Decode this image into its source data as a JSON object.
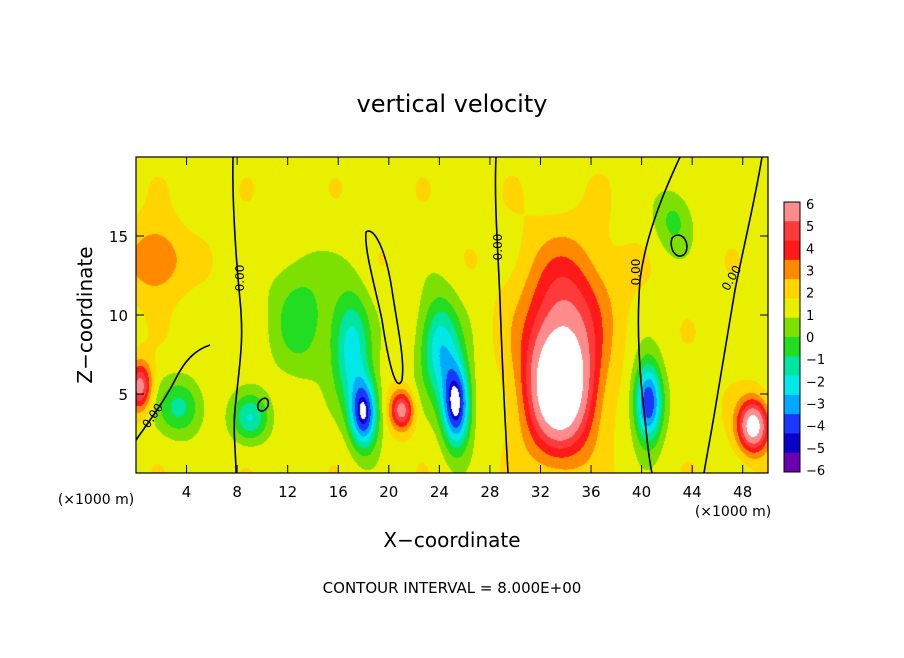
{
  "chart_data": {
    "type": "heatmap",
    "title": "vertical velocity",
    "xlabel": "X−coordinate",
    "ylabel": "Z−coordinate",
    "x_unit_note_left": "(×1000 m)",
    "x_unit_note_right": "(×1000 m)",
    "footer": "CONTOUR INTERVAL = 8.000E+00",
    "xlim": [
      0,
      50
    ],
    "ylim": [
      0,
      20
    ],
    "x_ticks": [
      4,
      8,
      12,
      16,
      20,
      24,
      28,
      32,
      36,
      40,
      44,
      48
    ],
    "y_ticks": [
      5,
      10,
      15
    ],
    "contour_label": "0.00",
    "colorbar": {
      "levels": [
        6,
        5,
        4,
        3,
        2,
        1,
        0,
        -1,
        -2,
        -3,
        -4,
        -5,
        -6
      ],
      "labels": [
        "6",
        "5",
        "4",
        "3",
        "2",
        "1",
        "0",
        "−1",
        "−2",
        "−3",
        "−4",
        "−5",
        "−6"
      ],
      "colors": [
        "#ff8c8c",
        "#ff3a3a",
        "#ff1a1a",
        "#ff8a00",
        "#ffd400",
        "#e8f000",
        "#7ee000",
        "#22dd22",
        "#00e5a0",
        "#00e8e8",
        "#00a8ff",
        "#1a36ff",
        "#0a00c8",
        "#6a00b0"
      ]
    },
    "features": [
      {
        "x": 1.5,
        "z": 13.5,
        "value": 2.5,
        "sx": 2.2,
        "sz": 2.2
      },
      {
        "x": 0.3,
        "z": 5.5,
        "value": 5.0,
        "sx": 0.9,
        "sz": 1.5
      },
      {
        "x": 3.5,
        "z": 4.2,
        "value": -3.0,
        "sx": 1.8,
        "sz": 1.8
      },
      {
        "x": 9.0,
        "z": 3.5,
        "value": -3.5,
        "sx": 1.5,
        "sz": 1.5
      },
      {
        "x": 13.0,
        "z": 10.0,
        "value": -2.2,
        "sx": 2.5,
        "sz": 4.0
      },
      {
        "x": 18.0,
        "z": 3.8,
        "value": -7.0,
        "sx": 1.1,
        "sz": 2.2
      },
      {
        "x": 17.0,
        "z": 8.0,
        "value": -4.2,
        "sx": 1.5,
        "sz": 3.5
      },
      {
        "x": 21.0,
        "z": 4.0,
        "value": 5.0,
        "sx": 0.9,
        "sz": 1.2
      },
      {
        "x": 25.3,
        "z": 4.3,
        "value": -7.5,
        "sx": 1.1,
        "sz": 2.6
      },
      {
        "x": 24.0,
        "z": 8.0,
        "value": -4.5,
        "sx": 1.6,
        "sz": 3.2
      },
      {
        "x": 33.5,
        "z": 5.5,
        "value": 9.0,
        "sx": 2.6,
        "sz": 4.0
      },
      {
        "x": 34.0,
        "z": 11.0,
        "value": 3.0,
        "sx": 3.5,
        "sz": 4.0
      },
      {
        "x": 40.5,
        "z": 4.5,
        "value": -7.0,
        "sx": 1.1,
        "sz": 2.5
      },
      {
        "x": 42.5,
        "z": 16.0,
        "value": -2.0,
        "sx": 1.5,
        "sz": 2.0
      },
      {
        "x": 48.8,
        "z": 3.0,
        "value": 7.0,
        "sx": 1.2,
        "sz": 1.6
      }
    ]
  }
}
